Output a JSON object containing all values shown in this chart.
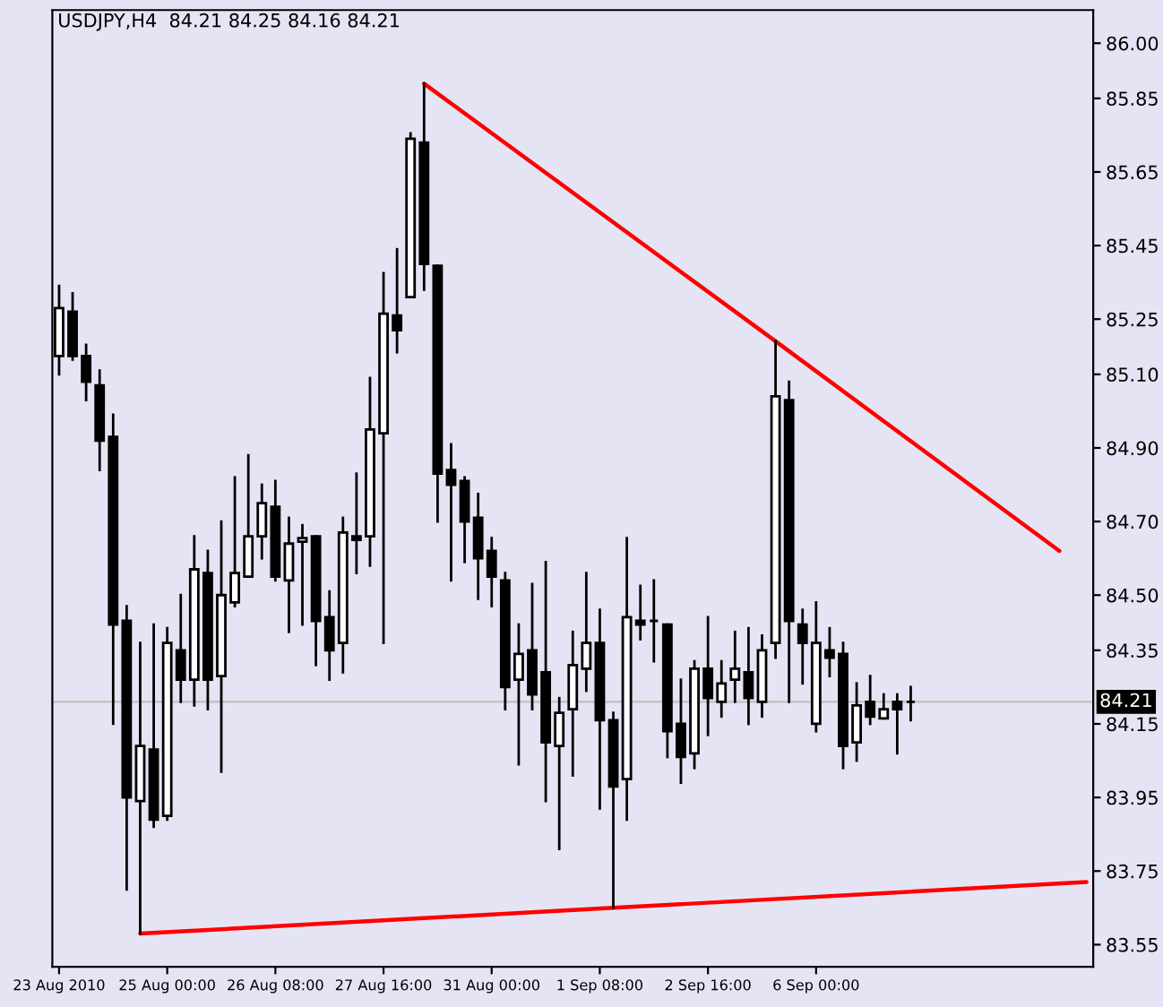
{
  "chart_data": {
    "type": "candlestick",
    "title": "USDJPY,H4  84.21 84.25 84.16 84.21",
    "categories": [
      "23 Aug 2010",
      null,
      null,
      null,
      null,
      null,
      null,
      null,
      "25 Aug 00:00",
      null,
      null,
      null,
      null,
      null,
      null,
      null,
      "26 Aug 08:00",
      null,
      null,
      null,
      null,
      null,
      null,
      null,
      "27 Aug 16:00",
      null,
      null,
      null,
      null,
      null,
      null,
      null,
      "31 Aug 00:00",
      null,
      null,
      null,
      null,
      null,
      null,
      null,
      "1 Sep 08:00",
      null,
      null,
      null,
      null,
      null,
      null,
      null,
      "2 Sep 16:00",
      null,
      null,
      null,
      null,
      null,
      null,
      null,
      "6 Sep 00:00",
      null,
      null,
      null,
      null,
      null,
      null,
      null,
      null,
      null,
      null,
      null,
      null,
      null,
      null,
      null,
      null,
      null,
      null,
      null,
      null
    ],
    "series": [
      {
        "color": "#000000",
        "ohlc": [
          [
            85.15,
            85.34,
            85.1,
            85.28
          ],
          [
            85.27,
            85.32,
            85.14,
            85.15
          ],
          [
            85.15,
            85.18,
            85.03,
            85.08
          ],
          [
            85.07,
            85.11,
            84.84,
            84.92
          ],
          [
            84.93,
            84.99,
            84.15,
            84.42
          ],
          [
            84.43,
            84.47,
            83.7,
            83.95
          ],
          [
            83.94,
            84.37,
            83.58,
            84.09
          ],
          [
            84.08,
            84.42,
            83.87,
            83.89
          ],
          [
            83.9,
            84.41,
            83.89,
            84.37
          ],
          [
            84.35,
            84.5,
            84.21,
            84.27
          ],
          [
            84.27,
            84.66,
            84.2,
            84.57
          ],
          [
            84.56,
            84.62,
            84.19,
            84.27
          ],
          [
            84.28,
            84.7,
            84.02,
            84.5
          ],
          [
            84.48,
            84.82,
            84.47,
            84.56
          ],
          [
            84.55,
            84.88,
            84.55,
            84.66
          ],
          [
            84.66,
            84.8,
            84.6,
            84.75
          ],
          [
            84.74,
            84.81,
            84.54,
            84.55
          ],
          [
            84.54,
            84.71,
            84.4,
            84.64
          ],
          [
            84.645,
            84.69,
            84.42,
            84.655
          ],
          [
            84.66,
            84.66,
            84.31,
            84.43
          ],
          [
            84.44,
            84.51,
            84.27,
            84.35
          ],
          [
            84.37,
            84.71,
            84.29,
            84.67
          ],
          [
            84.66,
            84.83,
            84.56,
            84.65
          ],
          [
            84.66,
            85.09,
            84.58,
            84.95
          ],
          [
            84.94,
            85.375,
            84.37,
            85.265
          ],
          [
            85.26,
            85.44,
            85.16,
            85.22
          ],
          [
            85.31,
            85.755,
            85.31,
            85.74
          ],
          [
            85.73,
            85.89,
            85.33,
            85.4
          ],
          [
            85.395,
            85.395,
            84.7,
            84.83
          ],
          [
            84.84,
            84.91,
            84.54,
            84.8
          ],
          [
            84.81,
            84.82,
            84.59,
            84.7
          ],
          [
            84.71,
            84.775,
            84.49,
            84.6
          ],
          [
            84.62,
            84.655,
            84.47,
            84.55
          ],
          [
            84.54,
            84.56,
            84.19,
            84.25
          ],
          [
            84.27,
            84.42,
            84.04,
            84.34
          ],
          [
            84.35,
            84.53,
            84.19,
            84.23
          ],
          [
            84.29,
            84.59,
            83.94,
            84.1
          ],
          [
            84.09,
            84.22,
            83.81,
            84.18
          ],
          [
            84.19,
            84.4,
            84.01,
            84.31
          ],
          [
            84.3,
            84.56,
            84.24,
            84.37
          ],
          [
            84.37,
            84.46,
            83.92,
            84.16
          ],
          [
            84.16,
            84.18,
            83.65,
            83.98
          ],
          [
            84.0,
            84.655,
            83.89,
            84.44
          ],
          [
            84.43,
            84.525,
            84.38,
            84.42
          ],
          [
            84.43,
            84.54,
            84.32,
            84.43
          ],
          [
            84.42,
            84.42,
            84.06,
            84.13
          ],
          [
            84.15,
            84.27,
            83.99,
            84.06
          ],
          [
            84.07,
            84.32,
            84.03,
            84.3
          ],
          [
            84.3,
            84.44,
            84.12,
            84.22
          ],
          [
            84.21,
            84.32,
            84.17,
            84.26
          ],
          [
            84.27,
            84.4,
            84.21,
            84.3
          ],
          [
            84.29,
            84.41,
            84.15,
            84.22
          ],
          [
            84.21,
            84.39,
            84.17,
            84.35
          ],
          [
            84.37,
            85.19,
            84.33,
            85.04
          ],
          [
            85.03,
            85.08,
            84.21,
            84.43
          ],
          [
            84.42,
            84.46,
            84.26,
            84.37
          ],
          [
            84.15,
            84.48,
            84.13,
            84.37
          ],
          [
            84.35,
            84.41,
            84.28,
            84.33
          ],
          [
            84.34,
            84.37,
            84.03,
            84.09
          ],
          [
            84.1,
            84.26,
            84.05,
            84.2
          ],
          [
            84.21,
            84.28,
            84.15,
            84.17
          ],
          [
            84.165,
            84.23,
            84.165,
            84.19
          ],
          [
            84.21,
            84.23,
            84.07,
            84.19
          ],
          [
            84.21,
            84.25,
            84.16,
            84.21
          ],
          null,
          null,
          null,
          null,
          null,
          null,
          null,
          null,
          null,
          null,
          null,
          null,
          null
        ]
      },
      {
        "type": "line",
        "color": "#ff0000",
        "values": [
          null,
          null,
          null,
          null,
          null,
          null,
          null,
          null,
          null,
          null,
          null,
          null,
          null,
          null,
          null,
          null,
          null,
          null,
          null,
          null,
          null,
          null,
          null,
          null,
          null,
          null,
          null,
          85.89,
          null,
          null,
          null,
          null,
          null,
          null,
          null,
          null,
          null,
          null,
          null,
          null,
          null,
          null,
          null,
          null,
          null,
          null,
          null,
          null,
          null,
          null,
          null,
          null,
          null,
          85.19,
          null,
          null,
          null,
          null,
          null,
          null,
          null,
          null,
          null,
          null,
          null,
          null,
          null,
          null,
          null,
          null,
          null,
          null,
          null,
          null,
          84.62,
          null,
          null
        ]
      },
      {
        "type": "line",
        "color": "#ff0000",
        "values": [
          null,
          null,
          null,
          null,
          null,
          null,
          83.58,
          null,
          null,
          null,
          null,
          null,
          null,
          null,
          null,
          null,
          null,
          null,
          null,
          null,
          null,
          null,
          null,
          null,
          null,
          null,
          null,
          null,
          null,
          null,
          null,
          null,
          null,
          null,
          null,
          null,
          null,
          null,
          null,
          null,
          null,
          83.65,
          null,
          null,
          null,
          null,
          null,
          null,
          null,
          null,
          null,
          null,
          null,
          null,
          null,
          null,
          null,
          null,
          null,
          null,
          null,
          null,
          null,
          null,
          null,
          null,
          null,
          null,
          null,
          null,
          null,
          null,
          null,
          null,
          null,
          null,
          83.72
        ]
      }
    ],
    "ylim": [
      83.49,
      86.09
    ],
    "yticks": [
      {
        "value": 83.55,
        "label": "83.55"
      },
      {
        "value": 83.75,
        "label": "83.75"
      },
      {
        "value": 83.95,
        "label": "83.95"
      },
      {
        "value": 84.15,
        "label": "84.15"
      },
      {
        "value": 84.35,
        "label": "84.35"
      },
      {
        "value": 84.5,
        "label": "84.50"
      },
      {
        "value": 84.7,
        "label": "84.70"
      },
      {
        "value": 84.9,
        "label": "84.90"
      },
      {
        "value": 85.1,
        "label": "85.10"
      },
      {
        "value": 85.25,
        "label": "85.25"
      },
      {
        "value": 85.45,
        "label": "85.45"
      },
      {
        "value": 85.65,
        "label": "85.65"
      },
      {
        "value": 85.85,
        "label": "85.85"
      },
      {
        "value": 86.0,
        "label": "86.00"
      }
    ],
    "ref_lines": [
      {
        "axis": "y",
        "value": 84.21,
        "label": "84.21",
        "color": "#c0c0c0"
      }
    ]
  }
}
